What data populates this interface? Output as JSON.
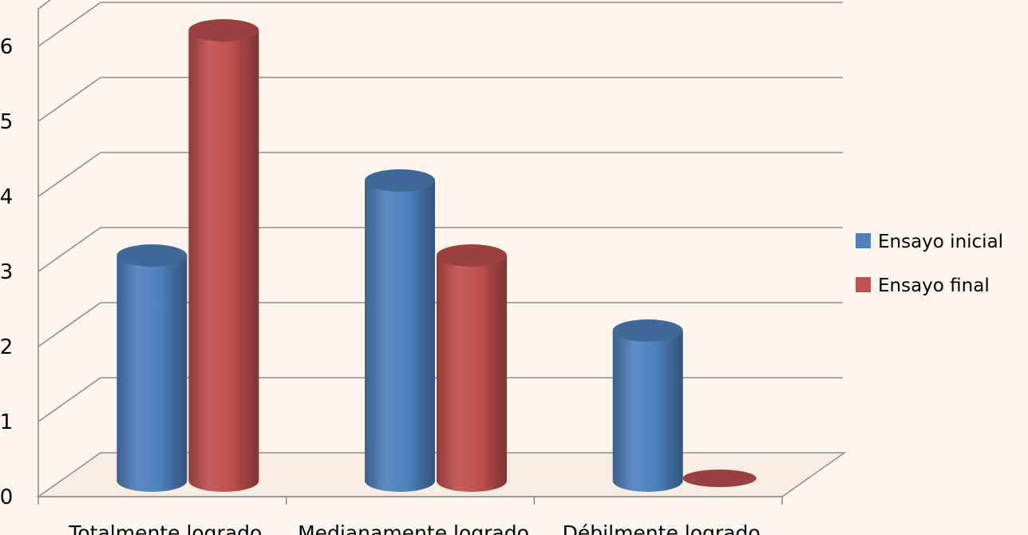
{
  "chart_data": {
    "type": "bar",
    "title": "",
    "xlabel": "",
    "ylabel": "",
    "categories": [
      "Totalmente logrado",
      "Medianamente logrado",
      "Débilmente logrado"
    ],
    "series": [
      {
        "name": "Ensayo inicial",
        "values": [
          3,
          4,
          2
        ],
        "color": "#4f81bd"
      },
      {
        "name": "Ensayo final",
        "values": [
          6,
          3,
          0
        ],
        "color": "#c0504d"
      }
    ],
    "ylim": [
      0,
      6
    ],
    "yticks": [
      "0",
      "1",
      "2",
      "3",
      "4",
      "5",
      "6"
    ],
    "grid": true,
    "legend_position": "right",
    "style": "3d-cylinder"
  }
}
